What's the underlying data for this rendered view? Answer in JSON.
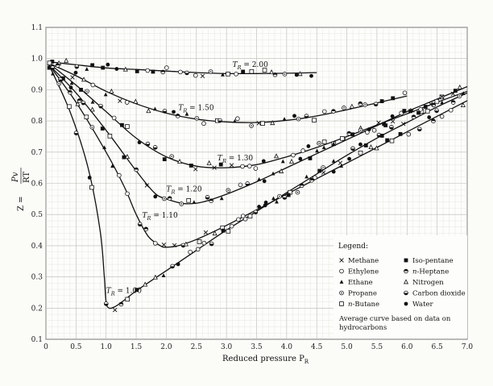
{
  "chart_data": {
    "type": "scatter",
    "title": "",
    "xlabel": "Reduced pressure P",
    "xlabel_sub": "R",
    "ylabel_z": "Z =",
    "ylabel_num": "Pv",
    "ylabel_den": "RT",
    "xlim": [
      0,
      7.0
    ],
    "ylim": [
      0.1,
      1.1
    ],
    "xticks": [
      "0",
      "0.5",
      "1.0",
      "1.5",
      "2.0",
      "2.5",
      "3.0",
      "3.5",
      "4.0",
      "4.5",
      "5.0",
      "5.5",
      "6.0",
      "6.5",
      "7.0"
    ],
    "yticks": [
      "0.1",
      "0.2",
      "0.3",
      "0.4",
      "0.5",
      "0.6",
      "0.7",
      "0.8",
      "0.9",
      "1.0",
      "1.1"
    ],
    "grid": true,
    "curves": [
      {
        "label_sym": "T",
        "label_sub": "R",
        "label_val": "= 2.00",
        "x": [
          0.05,
          0.5,
          1.0,
          1.5,
          2.0,
          2.5,
          3.0,
          3.5,
          4.0,
          4.5
        ],
        "y": [
          0.99,
          0.98,
          0.97,
          0.965,
          0.96,
          0.955,
          0.952,
          0.952,
          0.953,
          0.955
        ]
      },
      {
        "label_sym": "T",
        "label_sub": "R",
        "label_val": "= 1.50",
        "x": [
          0.05,
          0.5,
          1.0,
          1.5,
          2.0,
          2.5,
          3.0,
          3.5,
          4.0,
          4.5,
          5.0,
          5.5,
          6.0
        ],
        "y": [
          0.985,
          0.945,
          0.895,
          0.855,
          0.825,
          0.806,
          0.797,
          0.795,
          0.802,
          0.816,
          0.836,
          0.858,
          0.88
        ]
      },
      {
        "label_sym": "T",
        "label_sub": "R",
        "label_val": "= 1.30",
        "x": [
          0.05,
          0.5,
          1.0,
          1.5,
          2.0,
          2.5,
          3.0,
          3.5,
          4.0,
          4.5,
          5.0,
          5.5,
          6.0,
          6.5,
          7.0
        ],
        "y": [
          0.985,
          0.915,
          0.83,
          0.745,
          0.685,
          0.655,
          0.65,
          0.66,
          0.685,
          0.715,
          0.75,
          0.787,
          0.823,
          0.86,
          0.895
        ]
      },
      {
        "label_sym": "T",
        "label_sub": "R",
        "label_val": "= 1.20",
        "x": [
          0.05,
          0.5,
          1.0,
          1.5,
          1.8,
          2.0,
          2.3,
          2.6,
          3.0,
          3.5,
          4.0,
          4.5,
          5.0,
          5.5,
          6.0,
          6.5,
          7.0
        ],
        "y": [
          0.98,
          0.89,
          0.77,
          0.64,
          0.57,
          0.55,
          0.535,
          0.54,
          0.565,
          0.605,
          0.65,
          0.695,
          0.74,
          0.785,
          0.83,
          0.87,
          0.91
        ]
      },
      {
        "label_sym": "T",
        "label_sub": "R",
        "label_val": "= 1.10",
        "x": [
          0.05,
          0.5,
          1.0,
          1.3,
          1.5,
          1.7,
          1.9,
          2.0,
          2.2,
          2.5,
          3.0,
          3.5,
          4.0,
          4.5,
          5.0,
          5.5,
          6.0,
          6.5,
          7.0
        ],
        "y": [
          0.98,
          0.86,
          0.7,
          0.59,
          0.5,
          0.43,
          0.4,
          0.395,
          0.4,
          0.42,
          0.465,
          0.515,
          0.565,
          0.615,
          0.665,
          0.715,
          0.765,
          0.815,
          0.865
        ]
      },
      {
        "label_sym": "T",
        "label_sub": "R",
        "label_val": "= 1.00",
        "x": [
          0.05,
          0.4,
          0.7,
          0.9,
          0.97,
          1.0,
          1.05,
          1.15,
          1.3,
          1.5,
          2.0,
          2.5,
          3.0,
          3.5,
          4.0,
          4.5,
          5.0,
          5.5,
          6.0,
          6.5,
          7.0
        ],
        "y": [
          0.98,
          0.83,
          0.65,
          0.45,
          0.3,
          0.22,
          0.2,
          0.205,
          0.225,
          0.255,
          0.32,
          0.385,
          0.45,
          0.51,
          0.57,
          0.63,
          0.69,
          0.745,
          0.795,
          0.845,
          0.89
        ]
      }
    ],
    "legend": {
      "title": "Legend:",
      "placement": "bottom-right",
      "items": [
        {
          "marker": "x",
          "label": "Methane"
        },
        {
          "marker": "filled-square",
          "label": "Iso-pentane"
        },
        {
          "marker": "open-circle",
          "label": "Ethylene"
        },
        {
          "marker": "half-circle",
          "label": "n-Heptane"
        },
        {
          "marker": "filled-triangle",
          "label": "Ethane"
        },
        {
          "marker": "open-triangle",
          "label": "Nitrogen"
        },
        {
          "marker": "circle-dot",
          "label": "Propane"
        },
        {
          "marker": "half-circle-lower",
          "label": "Carbon dioxide"
        },
        {
          "marker": "open-square",
          "label": "n-Butane"
        },
        {
          "marker": "filled-circle",
          "label": "Water"
        }
      ],
      "note_line1": "Average curve based on data on",
      "note_line2": "hydrocarbons"
    }
  }
}
